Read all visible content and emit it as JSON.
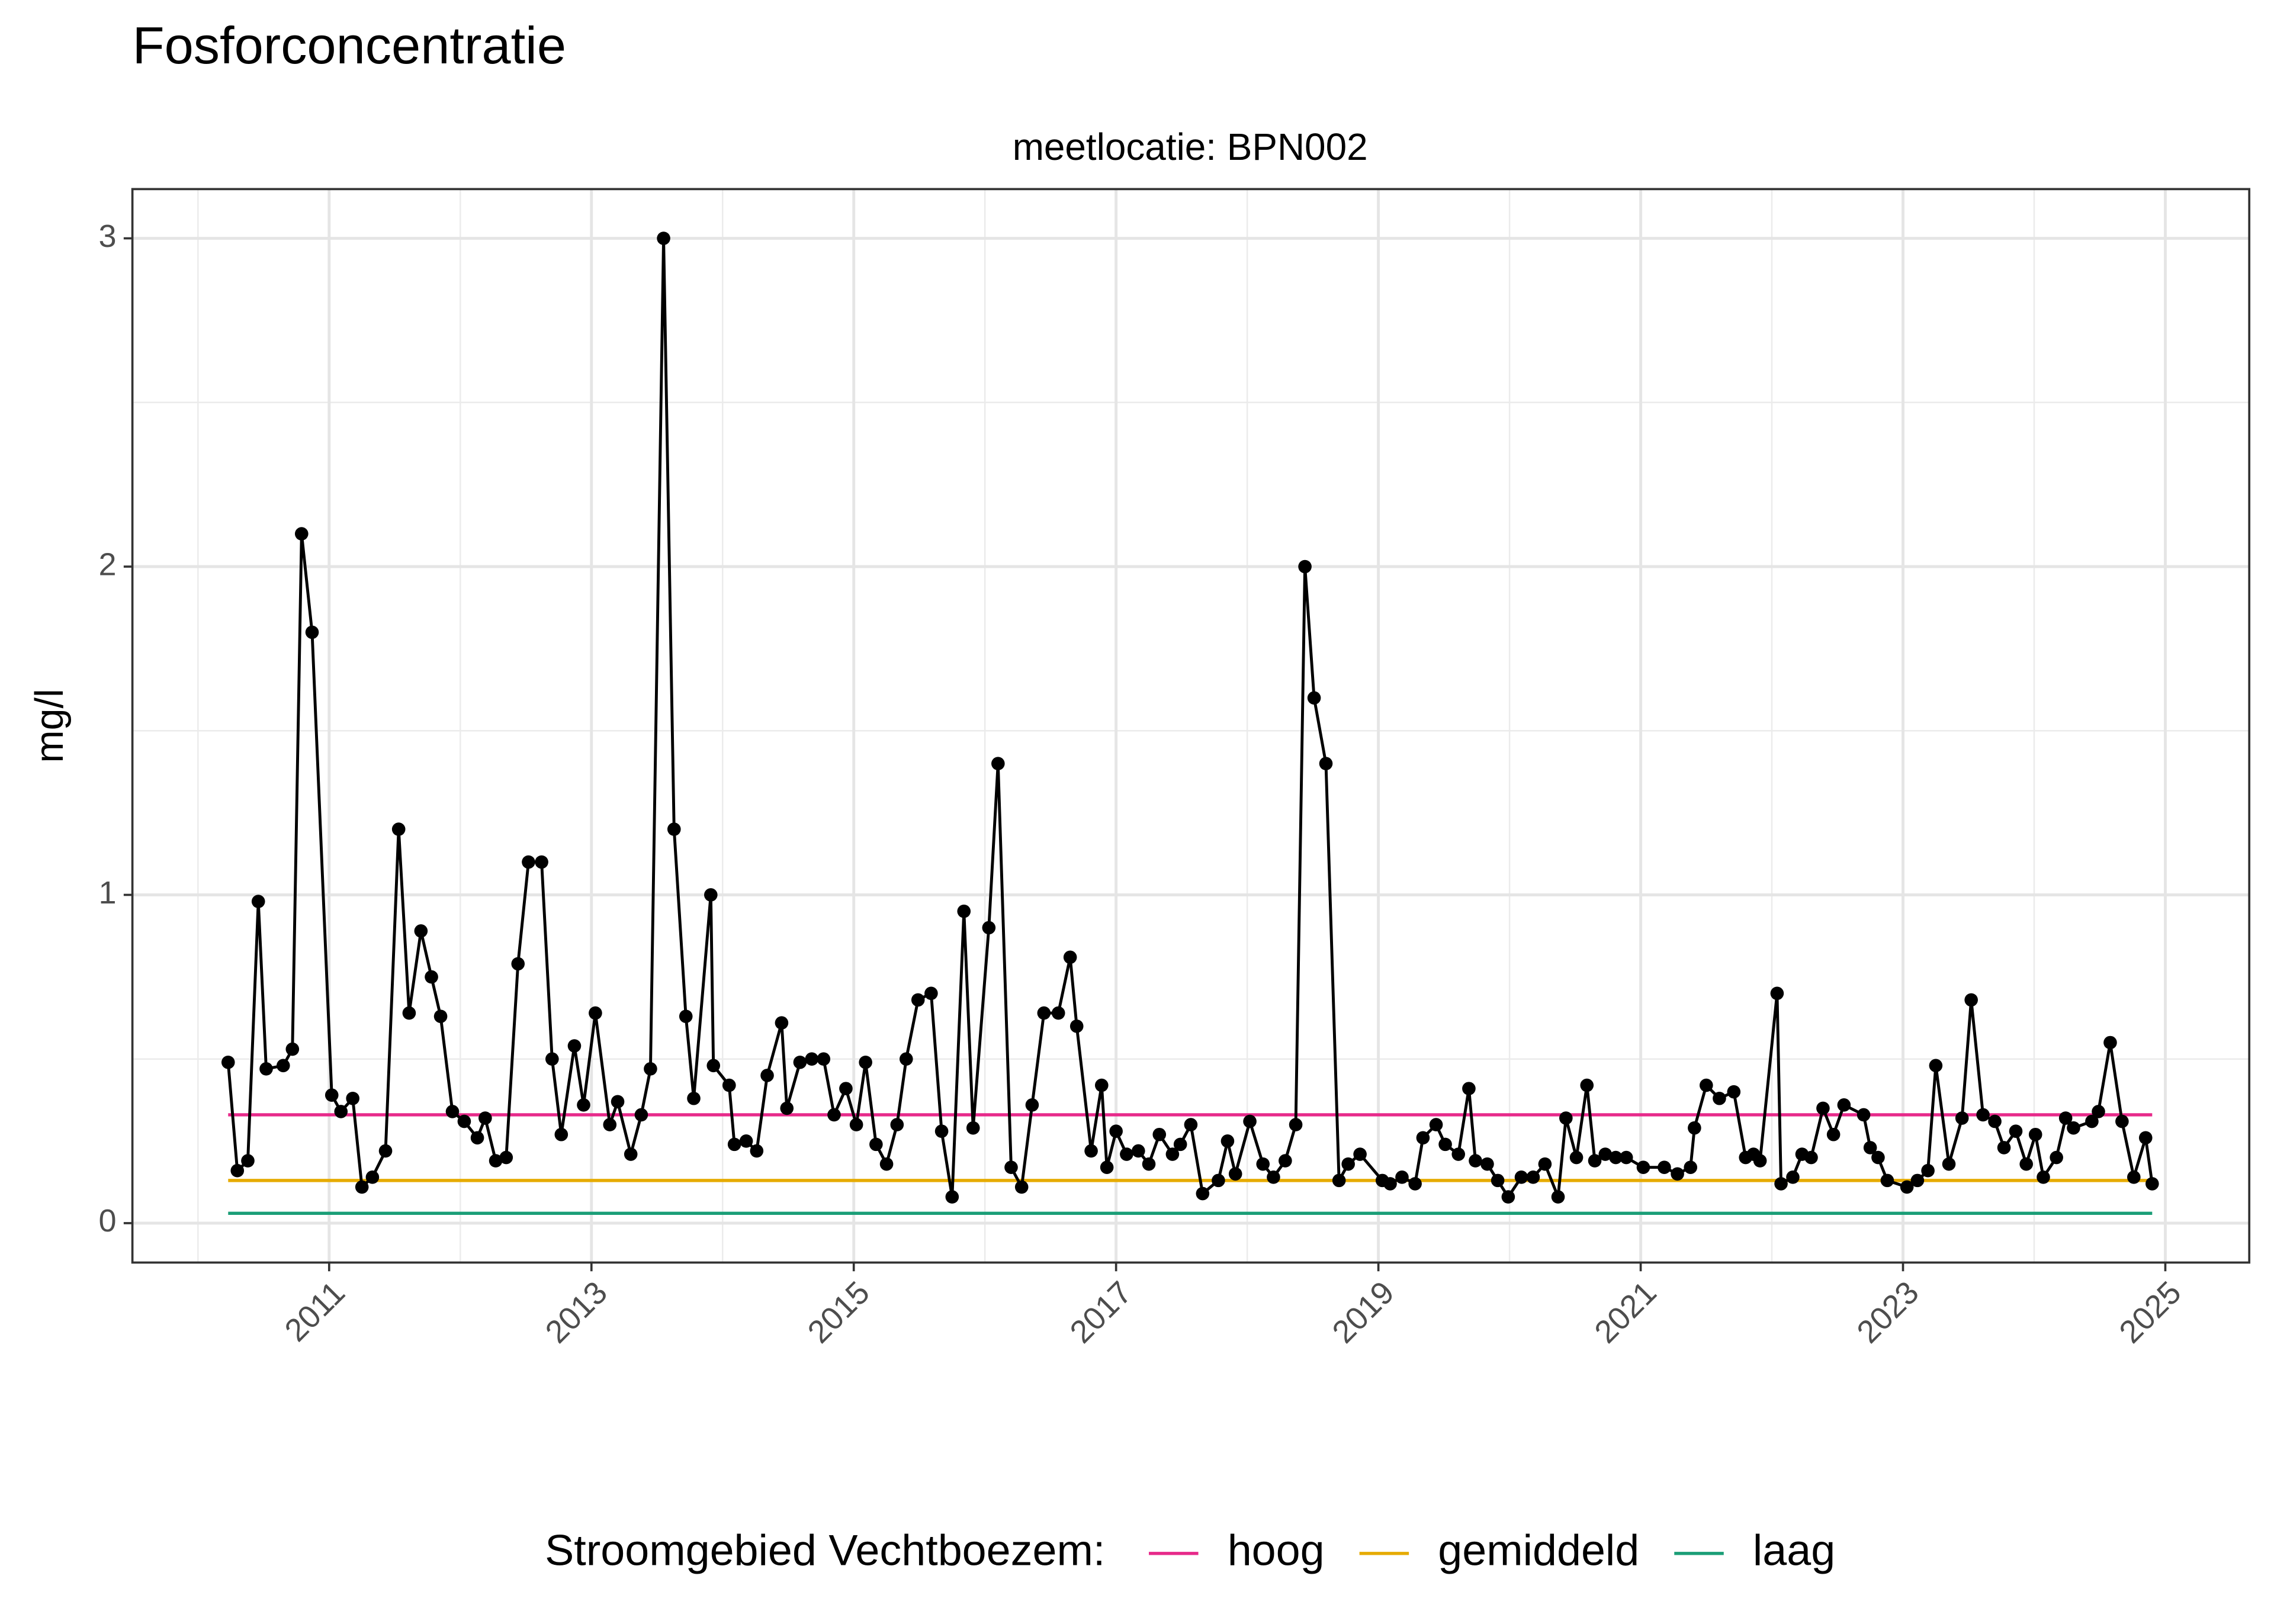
{
  "chart_data": {
    "type": "line",
    "title": "Fosforconcentratie",
    "subtitle": "meetlocatie: BPN002",
    "ylabel": "mg/l",
    "x": [
      2010.23,
      2010.3,
      2010.38,
      2010.46,
      2010.52,
      2010.65,
      2010.72,
      2010.79,
      2010.87,
      2011.02,
      2011.09,
      2011.18,
      2011.25,
      2011.33,
      2011.43,
      2011.53,
      2011.61,
      2011.7,
      2011.78,
      2011.85,
      2011.94,
      2012.03,
      2012.13,
      2012.19,
      2012.27,
      2012.35,
      2012.44,
      2012.52,
      2012.62,
      2012.7,
      2012.77,
      2012.87,
      2012.94,
      2013.03,
      2013.14,
      2013.2,
      2013.3,
      2013.38,
      2013.45,
      2013.55,
      2013.63,
      2013.72,
      2013.78,
      2013.91,
      2013.93,
      2014.05,
      2014.09,
      2014.18,
      2014.26,
      2014.34,
      2014.45,
      2014.49,
      2014.59,
      2014.68,
      2014.77,
      2014.85,
      2014.94,
      2015.02,
      2015.09,
      2015.17,
      2015.25,
      2015.33,
      2015.4,
      2015.49,
      2015.59,
      2015.67,
      2015.75,
      2015.84,
      2015.91,
      2016.03,
      2016.1,
      2016.2,
      2016.28,
      2016.36,
      2016.45,
      2016.56,
      2016.65,
      2016.7,
      2016.81,
      2016.89,
      2016.93,
      2017.0,
      2017.08,
      2017.17,
      2017.25,
      2017.33,
      2017.43,
      2017.49,
      2017.57,
      2017.66,
      2017.78,
      2017.85,
      2017.91,
      2018.02,
      2018.12,
      2018.2,
      2018.29,
      2018.37,
      2018.44,
      2018.51,
      2018.6,
      2018.7,
      2018.77,
      2018.86,
      2019.03,
      2019.09,
      2019.18,
      2019.28,
      2019.34,
      2019.44,
      2019.51,
      2019.61,
      2019.69,
      2019.74,
      2019.83,
      2019.91,
      2019.99,
      2020.09,
      2020.18,
      2020.27,
      2020.37,
      2020.43,
      2020.51,
      2020.59,
      2020.65,
      2020.73,
      2020.81,
      2020.89,
      2021.02,
      2021.18,
      2021.28,
      2021.38,
      2021.41,
      2021.5,
      2021.6,
      2021.71,
      2021.8,
      2021.86,
      2021.91,
      2022.04,
      2022.07,
      2022.16,
      2022.23,
      2022.3,
      2022.39,
      2022.47,
      2022.55,
      2022.7,
      2022.75,
      2022.81,
      2022.88,
      2023.03,
      2023.11,
      2023.19,
      2023.25,
      2023.35,
      2023.45,
      2023.52,
      2023.61,
      2023.7,
      2023.77,
      2023.86,
      2023.94,
      2024.01,
      2024.07,
      2024.17,
      2024.24,
      2024.3,
      2024.44,
      2024.49,
      2024.58,
      2024.67,
      2024.76,
      2024.85,
      2024.9
    ],
    "series": [
      {
        "color": "#000000",
        "values": [
          0.49,
          0.16,
          0.19,
          0.98,
          0.47,
          0.48,
          0.53,
          2.1,
          1.8,
          0.39,
          0.34,
          0.38,
          0.11,
          0.14,
          0.22,
          1.2,
          0.64,
          0.89,
          0.75,
          0.63,
          0.34,
          0.31,
          0.26,
          0.32,
          0.19,
          0.2,
          0.79,
          1.1,
          1.1,
          0.5,
          0.27,
          0.54,
          0.36,
          0.64,
          0.3,
          0.37,
          0.21,
          0.33,
          0.47,
          3.0,
          1.2,
          0.63,
          0.38,
          1.0,
          0.48,
          0.42,
          0.24,
          0.25,
          0.22,
          0.45,
          0.61,
          0.35,
          0.49,
          0.5,
          0.5,
          0.33,
          0.41,
          0.3,
          0.49,
          0.24,
          0.18,
          0.3,
          0.5,
          0.68,
          0.7,
          0.28,
          0.08,
          0.95,
          0.29,
          0.9,
          1.4,
          0.17,
          0.11,
          0.36,
          0.64,
          0.64,
          0.81,
          0.6,
          0.22,
          0.42,
          0.17,
          0.28,
          0.21,
          0.22,
          0.18,
          0.27,
          0.21,
          0.24,
          0.3,
          0.09,
          0.13,
          0.25,
          0.15,
          0.31,
          0.18,
          0.14,
          0.19,
          0.3,
          2.0,
          1.6,
          1.4,
          0.13,
          0.18,
          0.21,
          0.13,
          0.12,
          0.14,
          0.12,
          0.26,
          0.3,
          0.24,
          0.21,
          0.41,
          0.19,
          0.18,
          0.13,
          0.08,
          0.14,
          0.14,
          0.18,
          0.08,
          0.32,
          0.2,
          0.42,
          0.19,
          0.21,
          0.2,
          0.2,
          0.17,
          0.17,
          0.15,
          0.17,
          0.29,
          0.42,
          0.38,
          0.4,
          0.2,
          0.21,
          0.19,
          0.7,
          0.12,
          0.14,
          0.21,
          0.2,
          0.35,
          0.27,
          0.36,
          0.33,
          0.23,
          0.2,
          0.13,
          0.11,
          0.13,
          0.16,
          0.48,
          0.18,
          0.32,
          0.68,
          0.33,
          0.31,
          0.23,
          0.28,
          0.18,
          0.27,
          0.14,
          0.2,
          0.32,
          0.29,
          0.31,
          0.34,
          0.55,
          0.31,
          0.14,
          0.26,
          0.12
        ]
      }
    ],
    "reference_lines": [
      {
        "name": "hoog",
        "color": "#e7298a",
        "value": 0.33
      },
      {
        "name": "gemiddeld",
        "color": "#e6ab02",
        "value": 0.13
      },
      {
        "name": "laag",
        "color": "#1b9e77",
        "value": 0.03
      }
    ],
    "legend_title": "Stroomgebied Vechtboezem:",
    "legend_position": "bottom",
    "xlim": [
      2009.5,
      2025.64
    ],
    "xticks": [
      2011,
      2013,
      2015,
      2017,
      2019,
      2021,
      2023,
      2025
    ],
    "xminorticks": [
      2010,
      2012,
      2014,
      2016,
      2018,
      2020,
      2022,
      2024
    ],
    "ylim": [
      -0.12,
      3.15
    ],
    "yticks": [
      0,
      1,
      2,
      3
    ],
    "yminorticks": [
      0.5,
      1.5,
      2.5
    ],
    "grid": true
  }
}
